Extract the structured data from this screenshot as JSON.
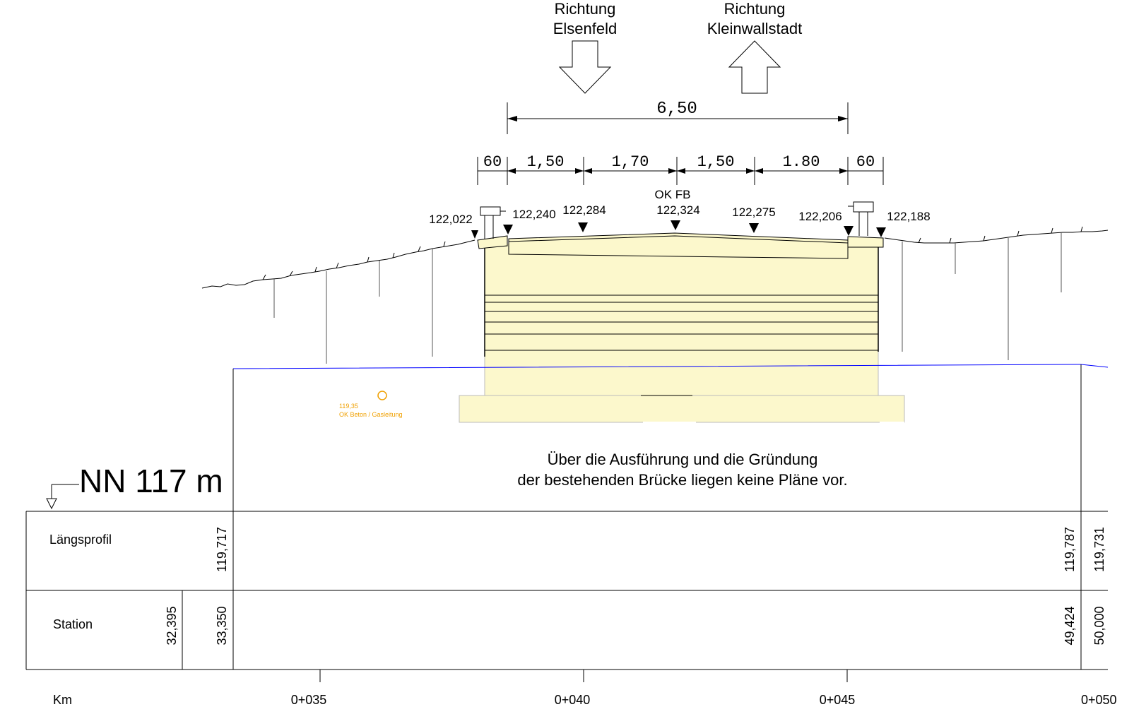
{
  "directions": {
    "left": {
      "line1": "Richtung",
      "line2": "Elsenfeld"
    },
    "right": {
      "line1": "Richtung",
      "line2": "Kleinwallstadt"
    }
  },
  "dimensions": {
    "total": "6,50",
    "segments": [
      "60",
      "1,50",
      "1,70",
      "1,50",
      "1.80",
      "60"
    ]
  },
  "elevations": {
    "e1": "122,022",
    "e2": "122,240",
    "e3": "122,284",
    "ok_label": "OK FB",
    "e4": "122,324",
    "e5": "122,275",
    "e6": "122,206",
    "e7": "122,188"
  },
  "gas": {
    "value": "119,35",
    "label": "OK Beton / Gasleitung"
  },
  "note": {
    "line1": "Über die Ausführung und die Gründung",
    "line2": "der bestehenden Brücke liegen keine Pläne vor."
  },
  "datum": "NN 117 m",
  "table": {
    "row1_label": "Längsprofil",
    "row2_label": "Station",
    "km_label": "Km",
    "laengs": [
      "119,717",
      "119,787",
      "119,731"
    ],
    "station": [
      "32,395",
      "33,350",
      "49,424",
      "50,000"
    ],
    "km": [
      "0+035",
      "0+040",
      "0+045",
      "0+050"
    ]
  },
  "colors": {
    "fill": "#fcf8cc",
    "water": "#0000ff",
    "gas": "#f0a000"
  }
}
